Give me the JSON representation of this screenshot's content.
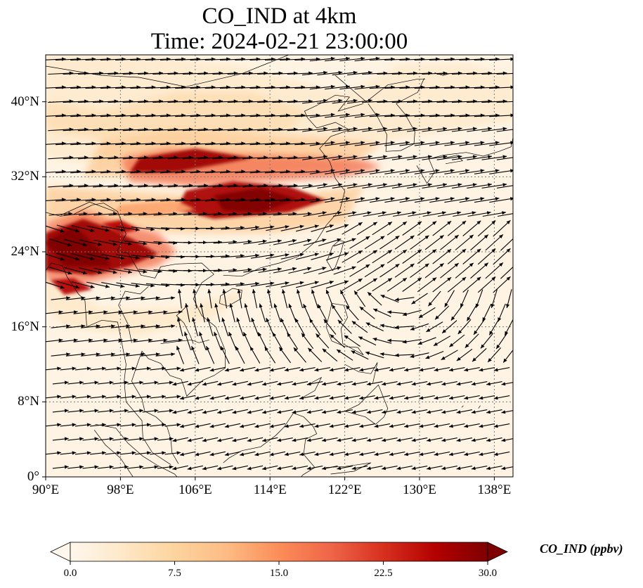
{
  "title": {
    "line1": "CO_IND at 4km",
    "line2": "Time: 2024-02-21 23:00:00"
  },
  "chart_data": {
    "type": "heatmap",
    "variable": "CO_IND",
    "height": "4km",
    "time": "2024-02-21 23:00:00",
    "units": "ppbv",
    "lon_range": [
      90,
      140
    ],
    "lat_range": [
      0,
      45
    ],
    "x_ticks": [
      "90°E",
      "98°E",
      "106°E",
      "114°E",
      "122°E",
      "130°E",
      "138°E"
    ],
    "x_tick_values": [
      90,
      98,
      106,
      114,
      122,
      130,
      138
    ],
    "y_ticks": [
      "0°",
      "8°N",
      "16°N",
      "24°N",
      "32°N",
      "40°N"
    ],
    "y_tick_values": [
      0,
      8,
      16,
      24,
      32,
      40
    ],
    "gridlines": true,
    "overlay": "wind vectors",
    "colorbar": {
      "label": "CO_IND (ppbv)",
      "ticks": [
        "0.0",
        "7.5",
        "15.0",
        "22.5",
        "30.0"
      ],
      "tick_values": [
        0,
        7.5,
        15,
        22.5,
        30
      ],
      "range": [
        0,
        30
      ],
      "extend": "both",
      "colormap": "OrRd",
      "colors": [
        "#fff7ec",
        "#fee8c8",
        "#fdd49e",
        "#fdbb84",
        "#fc8d59",
        "#ef6548",
        "#d7301f",
        "#b30000",
        "#7f0000"
      ]
    },
    "high_concentration_regions": [
      {
        "name": "band",
        "lon": [
          97,
          120
        ],
        "lat": [
          28,
          35
        ],
        "max_value": 30
      },
      {
        "name": "south-west",
        "lon": [
          90,
          102
        ],
        "lat": [
          20,
          27
        ],
        "max_value": 30
      }
    ]
  }
}
